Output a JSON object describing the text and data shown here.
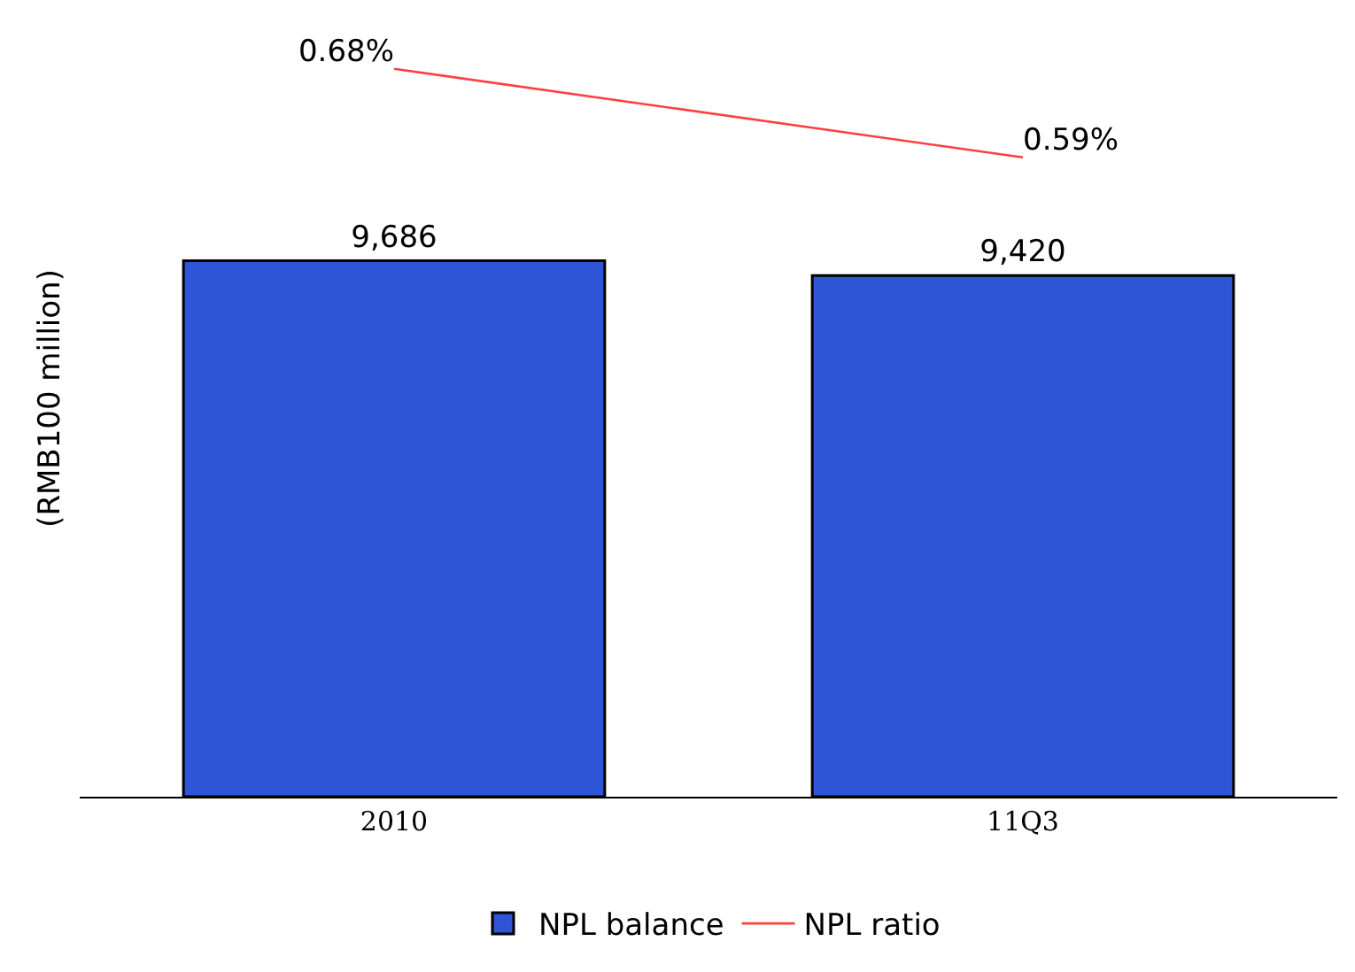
{
  "chart_data": {
    "type": "bar",
    "categories": [
      "2010",
      "11Q3"
    ],
    "ylabel": "(RMB100 million)",
    "ylim": [
      0,
      14400
    ],
    "y2lim": [
      -0.06,
      0.75
    ],
    "grid": false,
    "legend": "bottom",
    "tick_labels": "x",
    "series": [
      {
        "name": "NPL balance",
        "color": "#2e55d6",
        "values": [
          9686,
          9420
        ],
        "value_labels": [
          "9,686",
          "9,420"
        ]
      },
      {
        "name": "NPL ratio",
        "type": "line",
        "axis": "y2",
        "color": "#ff4040",
        "marker": "none",
        "values": [
          0.68,
          0.59
        ],
        "value_labels": [
          "0.68%",
          "0.59%"
        ]
      }
    ]
  }
}
